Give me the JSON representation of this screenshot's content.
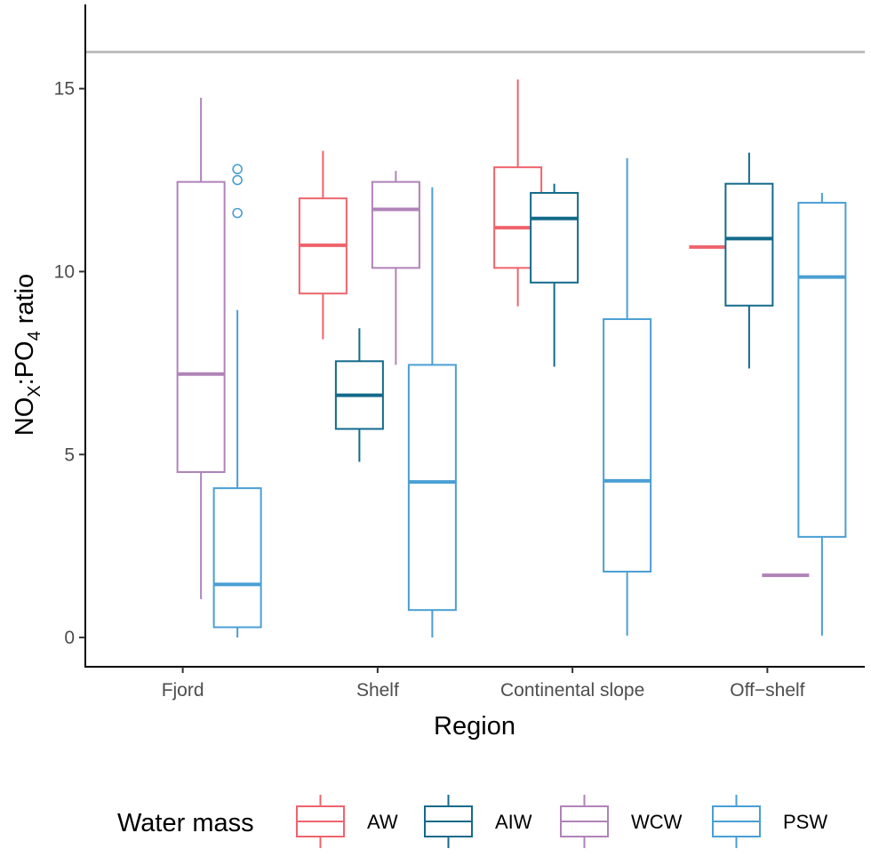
{
  "chart_data": {
    "type": "box",
    "xlabel": "Region",
    "ylabel": {
      "base1": "NO",
      "sub1": "X",
      "mid": ":PO",
      "sub2": "4",
      "rest": " ratio"
    },
    "ylim": [
      -0.8,
      17.3
    ],
    "yticks": [
      0,
      5,
      10,
      15
    ],
    "ytick_labels": [
      "0",
      "5",
      "10",
      "15"
    ],
    "reference_line": {
      "y": 16,
      "color": "#bebebe"
    },
    "categories": [
      "Fjord",
      "Shelf",
      "Continental slope",
      "Off−shelf"
    ],
    "legend": {
      "title": "Water mass",
      "position": "bottom",
      "items": [
        {
          "label": "AW",
          "color": "#EE646C"
        },
        {
          "label": "AIW",
          "color": "#136A8A"
        },
        {
          "label": "WCW",
          "color": "#B083B8"
        },
        {
          "label": "PSW",
          "color": "#4A9FD4"
        }
      ]
    },
    "series": [
      {
        "name": "AW",
        "color": "#EE646C",
        "boxes": [
          null,
          {
            "min": 8.15,
            "q1": 9.4,
            "median": 10.72,
            "q3": 12.0,
            "max": 13.3,
            "outliers": []
          },
          {
            "min": 9.05,
            "q1": 10.1,
            "median": 11.2,
            "q3": 12.85,
            "max": 15.25,
            "outliers": []
          },
          {
            "min": 10.67,
            "q1": 10.67,
            "median": 10.67,
            "q3": 10.67,
            "max": 10.67,
            "outliers": []
          }
        ]
      },
      {
        "name": "AIW",
        "color": "#136A8A",
        "boxes": [
          null,
          {
            "min": 4.8,
            "q1": 5.7,
            "median": 6.62,
            "q3": 7.55,
            "max": 8.45,
            "outliers": []
          },
          {
            "min": 7.4,
            "q1": 9.7,
            "median": 11.45,
            "q3": 12.15,
            "max": 12.4,
            "outliers": []
          },
          {
            "min": 7.35,
            "q1": 9.07,
            "median": 10.9,
            "q3": 12.4,
            "max": 13.25,
            "outliers": []
          }
        ]
      },
      {
        "name": "WCW",
        "color": "#B083B8",
        "boxes": [
          {
            "min": 1.05,
            "q1": 4.52,
            "median": 7.2,
            "q3": 12.45,
            "max": 14.75,
            "outliers": []
          },
          {
            "min": 7.45,
            "q1": 10.1,
            "median": 11.7,
            "q3": 12.45,
            "max": 12.75,
            "outliers": []
          },
          null,
          {
            "min": 1.7,
            "q1": 1.7,
            "median": 1.7,
            "q3": 1.7,
            "max": 1.7,
            "outliers": []
          }
        ]
      },
      {
        "name": "PSW",
        "color": "#4A9FD4",
        "boxes": [
          {
            "min": 0.0,
            "q1": 0.28,
            "median": 1.45,
            "q3": 4.08,
            "max": 8.95,
            "outliers": [
              11.6,
              12.5,
              12.8
            ]
          },
          {
            "min": 0.0,
            "q1": 0.75,
            "median": 4.25,
            "q3": 7.45,
            "max": 12.3,
            "outliers": []
          },
          {
            "min": 0.05,
            "q1": 1.8,
            "median": 4.28,
            "q3": 8.7,
            "max": 13.1,
            "outliers": []
          },
          {
            "min": 0.05,
            "q1": 2.75,
            "median": 9.85,
            "q3": 11.88,
            "max": 12.15,
            "outliers": []
          }
        ]
      }
    ]
  }
}
